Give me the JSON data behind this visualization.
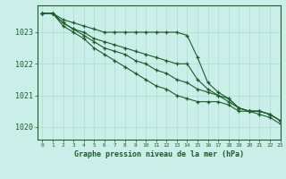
{
  "title": "Graphe pression niveau de la mer (hPa)",
  "background_color": "#cceee8",
  "grid_color": "#aaddcc",
  "line_color": "#1a5c2a",
  "xlim": [
    -0.5,
    23
  ],
  "ylim": [
    1019.6,
    1023.85
  ],
  "yticks": [
    1020,
    1021,
    1022,
    1023
  ],
  "xticks": [
    0,
    1,
    2,
    3,
    4,
    5,
    6,
    7,
    8,
    9,
    10,
    11,
    12,
    13,
    14,
    15,
    16,
    17,
    18,
    19,
    20,
    21,
    22,
    23
  ],
  "series": [
    [
      1023.6,
      1023.6,
      1023.4,
      1023.3,
      1023.2,
      1023.1,
      1023.0,
      1023.0,
      1023.0,
      1023.0,
      1023.0,
      1023.0,
      1023.0,
      1023.0,
      1022.9,
      1022.2,
      1021.4,
      1021.1,
      1020.9,
      1020.6,
      1020.5,
      1020.5,
      1020.4,
      1020.2
    ],
    [
      1023.6,
      1023.6,
      1023.3,
      1023.1,
      1023.0,
      1022.8,
      1022.7,
      1022.6,
      1022.5,
      1022.4,
      1022.3,
      1022.2,
      1022.1,
      1022.0,
      1022.0,
      1021.5,
      1021.2,
      1021.0,
      1020.8,
      1020.6,
      1020.5,
      1020.5,
      1020.4,
      1020.2
    ],
    [
      1023.6,
      1023.6,
      1023.3,
      1023.1,
      1022.9,
      1022.7,
      1022.5,
      1022.4,
      1022.3,
      1022.1,
      1022.0,
      1021.8,
      1021.7,
      1021.5,
      1021.4,
      1021.2,
      1021.1,
      1021.0,
      1020.9,
      1020.6,
      1020.5,
      1020.5,
      1020.4,
      1020.2
    ],
    [
      1023.6,
      1023.6,
      1023.2,
      1023.0,
      1022.8,
      1022.5,
      1022.3,
      1022.1,
      1021.9,
      1021.7,
      1021.5,
      1021.3,
      1021.2,
      1021.0,
      1020.9,
      1020.8,
      1020.8,
      1020.8,
      1020.7,
      1020.5,
      1020.5,
      1020.4,
      1020.3,
      1020.1
    ]
  ]
}
